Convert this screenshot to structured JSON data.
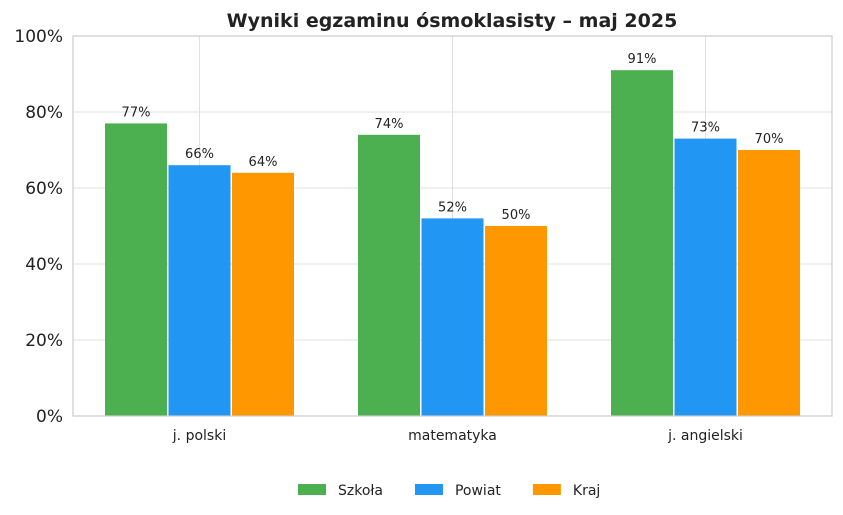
{
  "chart_data": {
    "type": "bar",
    "title": "Wyniki egzaminu ósmoklasisty – maj 2025",
    "categories": [
      "j. polski",
      "matematyka",
      "j. angielski"
    ],
    "series": [
      {
        "name": "Szkoła",
        "color": "#4CAF50",
        "values": [
          77,
          74,
          91
        ]
      },
      {
        "name": "Powiat",
        "color": "#2196F3",
        "values": [
          66,
          52,
          73
        ]
      },
      {
        "name": "Kraj",
        "color": "#FF9800",
        "values": [
          64,
          50,
          70
        ]
      }
    ],
    "ylim": [
      0,
      100
    ],
    "yticks": [
      0,
      20,
      40,
      60,
      80,
      100
    ],
    "ytick_labels": [
      "0%",
      "20%",
      "40%",
      "60%",
      "80%",
      "100%"
    ],
    "value_suffix": "%",
    "xlabel": "",
    "ylabel": "",
    "grid": true,
    "legend_position": "bottom-center"
  }
}
